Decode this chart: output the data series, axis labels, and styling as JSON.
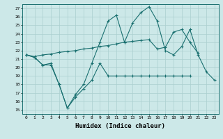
{
  "title": "",
  "xlabel": "Humidex (Indice chaleur)",
  "bg_color": "#cce8e8",
  "grid_color": "#aacfcf",
  "line_color": "#1a7070",
  "x": [
    0,
    1,
    2,
    3,
    4,
    5,
    6,
    7,
    8,
    9,
    10,
    11,
    12,
    13,
    14,
    15,
    16,
    17,
    18,
    19,
    20,
    21,
    22,
    23
  ],
  "line1_y": [
    21.5,
    21.2,
    20.3,
    20.3,
    18.0,
    15.2,
    16.5,
    17.5,
    18.5,
    20.5,
    19.0,
    19.0,
    19.0,
    19.0,
    19.0,
    19.0,
    19.0,
    19.0,
    19.0,
    19.0,
    19.0,
    null,
    null,
    null
  ],
  "line2_y": [
    21.5,
    21.2,
    20.3,
    20.5,
    18.0,
    15.2,
    16.8,
    18.0,
    20.5,
    23.0,
    25.5,
    26.2,
    23.0,
    25.3,
    26.5,
    27.2,
    25.5,
    22.0,
    21.5,
    22.5,
    24.5,
    21.5,
    19.5,
    18.5
  ],
  "line3_y": [
    21.5,
    21.3,
    21.5,
    21.6,
    21.8,
    21.9,
    22.0,
    22.2,
    22.3,
    22.5,
    22.6,
    22.8,
    23.0,
    23.1,
    23.2,
    23.3,
    22.2,
    22.4,
    24.2,
    24.5,
    23.0,
    21.7,
    null,
    null
  ],
  "ylim": [
    14.5,
    27.5
  ],
  "xlim": [
    -0.5,
    23.5
  ],
  "yticks": [
    15,
    16,
    17,
    18,
    19,
    20,
    21,
    22,
    23,
    24,
    25,
    26,
    27
  ],
  "xticks": [
    0,
    1,
    2,
    3,
    4,
    5,
    6,
    7,
    8,
    9,
    10,
    11,
    12,
    13,
    14,
    15,
    16,
    17,
    18,
    19,
    20,
    21,
    22,
    23
  ]
}
